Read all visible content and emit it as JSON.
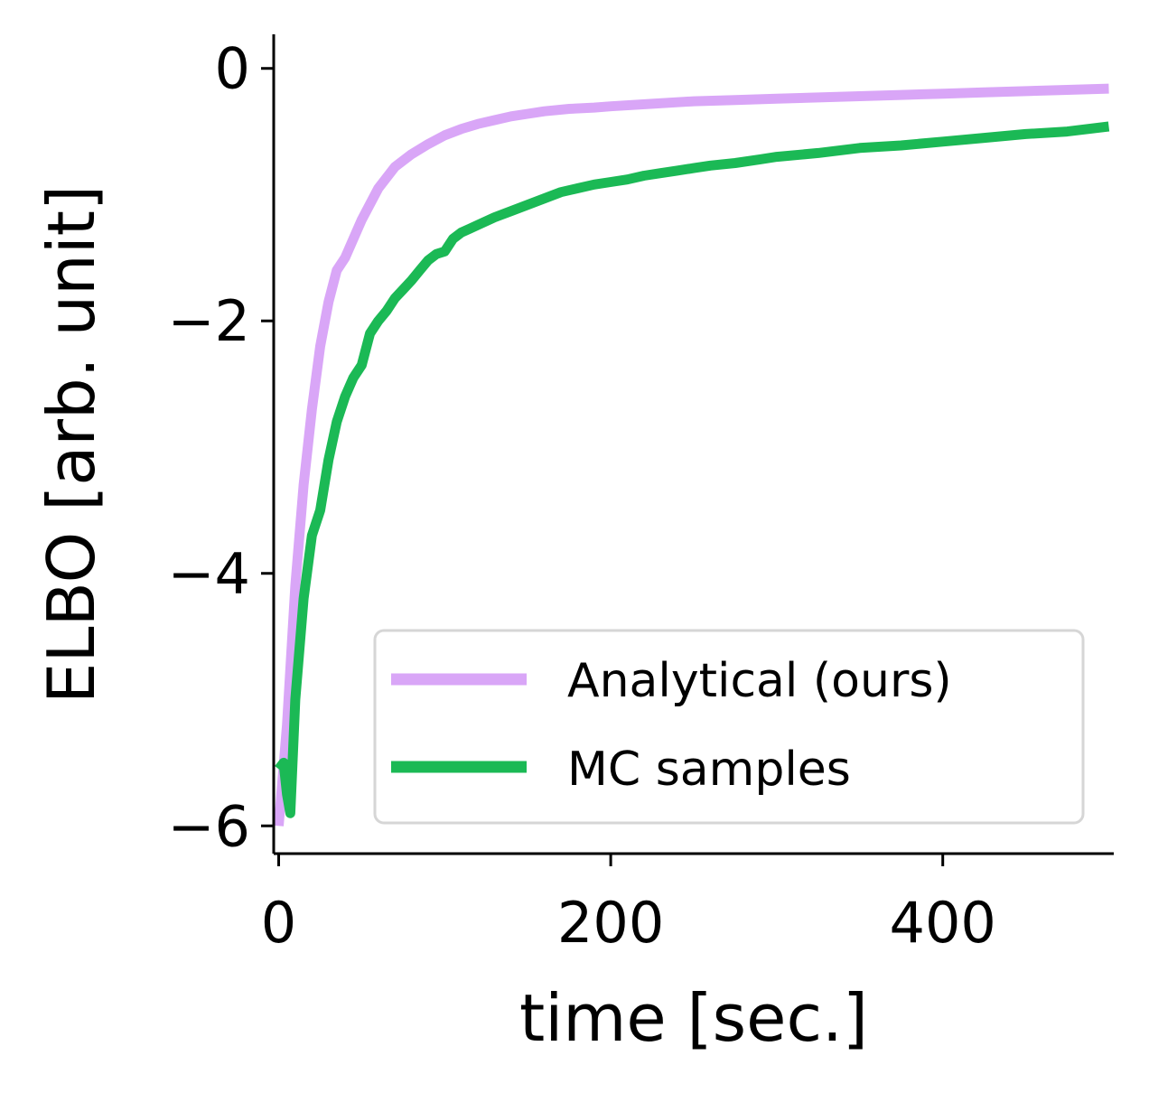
{
  "chart_data": {
    "type": "line",
    "title": "",
    "xlabel": "time [sec.]",
    "ylabel": "ELBO [arb. unit]",
    "xlim": [
      -3,
      503
    ],
    "ylim": [
      -6.22,
      0.27
    ],
    "xticks": [
      0,
      200,
      400
    ],
    "xtick_labels": [
      "0",
      "200",
      "400"
    ],
    "yticks": [
      0,
      -2,
      -4,
      -6
    ],
    "ytick_labels": [
      "0",
      "−2",
      "−4",
      "−6"
    ],
    "grid": false,
    "legend_position": "lower-right",
    "series": [
      {
        "name": "Analytical (ours)",
        "color": "#d9a6f7",
        "x": [
          0,
          5,
          10,
          15,
          20,
          25,
          30,
          35,
          40,
          50,
          60,
          70,
          80,
          90,
          100,
          110,
          120,
          130,
          140,
          150,
          160,
          175,
          190,
          200,
          225,
          250,
          275,
          300,
          325,
          350,
          375,
          400,
          425,
          450,
          475,
          500
        ],
        "y": [
          -6.0,
          -5.2,
          -4.1,
          -3.3,
          -2.7,
          -2.2,
          -1.85,
          -1.6,
          -1.5,
          -1.2,
          -0.95,
          -0.78,
          -0.68,
          -0.6,
          -0.53,
          -0.48,
          -0.44,
          -0.41,
          -0.38,
          -0.36,
          -0.34,
          -0.32,
          -0.31,
          -0.3,
          -0.28,
          -0.26,
          -0.25,
          -0.24,
          -0.23,
          -0.22,
          -0.21,
          -0.2,
          -0.19,
          -0.18,
          -0.17,
          -0.16
        ]
      },
      {
        "name": "MC samples",
        "color": "#1bb955",
        "x": [
          0,
          3,
          5,
          7,
          10,
          15,
          20,
          25,
          30,
          35,
          40,
          45,
          50,
          55,
          60,
          65,
          70,
          75,
          80,
          85,
          90,
          95,
          100,
          105,
          110,
          115,
          120,
          130,
          140,
          150,
          160,
          170,
          180,
          190,
          200,
          210,
          220,
          230,
          240,
          250,
          260,
          275,
          290,
          300,
          325,
          350,
          375,
          400,
          425,
          450,
          475,
          500
        ],
        "y": [
          -5.55,
          -5.5,
          -5.75,
          -5.9,
          -5.0,
          -4.2,
          -3.7,
          -3.5,
          -3.1,
          -2.8,
          -2.6,
          -2.45,
          -2.35,
          -2.1,
          -2.0,
          -1.92,
          -1.82,
          -1.75,
          -1.68,
          -1.6,
          -1.52,
          -1.47,
          -1.45,
          -1.35,
          -1.3,
          -1.27,
          -1.24,
          -1.18,
          -1.13,
          -1.08,
          -1.03,
          -0.98,
          -0.95,
          -0.92,
          -0.9,
          -0.88,
          -0.85,
          -0.83,
          -0.81,
          -0.79,
          -0.77,
          -0.75,
          -0.72,
          -0.7,
          -0.67,
          -0.63,
          -0.61,
          -0.58,
          -0.55,
          -0.52,
          -0.5,
          -0.46
        ]
      }
    ]
  }
}
